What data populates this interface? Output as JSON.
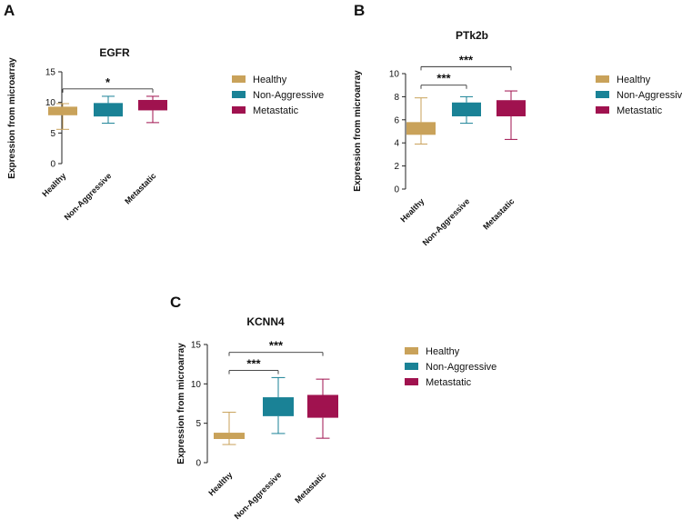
{
  "figure": {
    "colors": {
      "Healthy": "#C9A25A",
      "Non-Aggressive": "#1A8296",
      "Metastatic": "#A0124F"
    },
    "legend_labels": [
      "Healthy",
      "Non-Aggressive",
      "Metastatic"
    ]
  },
  "chart_data": [
    {
      "panel": "A",
      "type": "boxplot",
      "title": "EGFR",
      "ylabel": "Expression from microarray",
      "ylim": [
        0,
        15
      ],
      "yticks": [
        0,
        5,
        10,
        15
      ],
      "categories": [
        "Healthy",
        "Non-Aggressive",
        "Metastatic"
      ],
      "boxes": [
        {
          "min": 5.6,
          "q1": 7.9,
          "median": 8.6,
          "q3": 9.3,
          "max": 9.8
        },
        {
          "min": 6.6,
          "q1": 7.7,
          "median": 9.1,
          "q3": 9.9,
          "max": 11.0
        },
        {
          "min": 6.7,
          "q1": 8.7,
          "median": 9.6,
          "q3": 10.4,
          "max": 11.0
        }
      ],
      "significance": [
        {
          "from": 0,
          "to": 2,
          "y": 12.2,
          "label": "*"
        }
      ]
    },
    {
      "panel": "B",
      "type": "boxplot",
      "title": "PTk2b",
      "ylabel": "Expression from microarray",
      "ylim": [
        0,
        10
      ],
      "yticks": [
        0,
        2,
        4,
        6,
        8,
        10
      ],
      "categories": [
        "Healthy",
        "Non-Aggressive",
        "Metastatic"
      ],
      "boxes": [
        {
          "min": 3.9,
          "q1": 4.7,
          "median": 5.2,
          "q3": 5.8,
          "max": 7.9
        },
        {
          "min": 5.7,
          "q1": 6.3,
          "median": 6.9,
          "q3": 7.5,
          "max": 8.0
        },
        {
          "min": 4.3,
          "q1": 6.3,
          "median": 6.9,
          "q3": 7.7,
          "max": 8.5
        }
      ],
      "significance": [
        {
          "from": 0,
          "to": 1,
          "y": 9.0,
          "label": "***"
        },
        {
          "from": 0,
          "to": 2,
          "y": 10.6,
          "label": "***"
        }
      ]
    },
    {
      "panel": "C",
      "type": "boxplot",
      "title": "KCNN4",
      "ylabel": "Expression from microarray",
      "ylim": [
        0,
        15
      ],
      "yticks": [
        0,
        5,
        10,
        15
      ],
      "categories": [
        "Healthy",
        "Non-Aggressive",
        "Metastatic"
      ],
      "boxes": [
        {
          "min": 2.3,
          "q1": 3.0,
          "median": 3.3,
          "q3": 3.8,
          "max": 6.4
        },
        {
          "min": 3.7,
          "q1": 5.9,
          "median": 6.8,
          "q3": 8.3,
          "max": 10.8
        },
        {
          "min": 3.1,
          "q1": 5.7,
          "median": 7.0,
          "q3": 8.6,
          "max": 10.6
        }
      ],
      "significance": [
        {
          "from": 0,
          "to": 1,
          "y": 11.7,
          "label": "***"
        },
        {
          "from": 0,
          "to": 2,
          "y": 14.0,
          "label": "***"
        }
      ]
    }
  ]
}
